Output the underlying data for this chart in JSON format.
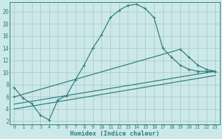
{
  "title": "",
  "xlabel": "Humidex (Indice chaleur)",
  "background_color": "#cce8e8",
  "grid_color": "#aacccc",
  "line_color": "#2d7d7d",
  "xlim": [
    -0.5,
    23.5
  ],
  "ylim": [
    1.5,
    21.5
  ],
  "xticks": [
    0,
    1,
    2,
    3,
    4,
    5,
    6,
    7,
    8,
    9,
    10,
    11,
    12,
    13,
    14,
    15,
    16,
    17,
    18,
    19,
    20,
    21,
    22,
    23
  ],
  "yticks": [
    2,
    4,
    6,
    8,
    10,
    12,
    14,
    16,
    18,
    20
  ],
  "line1_x": [
    0,
    1,
    2,
    3,
    4,
    5,
    6,
    7,
    8,
    9,
    10,
    11,
    12,
    13,
    14,
    15,
    16,
    17,
    18,
    19,
    20,
    21,
    22,
    23
  ],
  "line1_y": [
    7.5,
    5.8,
    4.9,
    3.0,
    2.2,
    5.5,
    6.2,
    8.8,
    11.2,
    14.0,
    16.2,
    19.0,
    20.2,
    21.0,
    21.2,
    20.5,
    19.0,
    14.0,
    12.5,
    11.2,
    10.5,
    10.2,
    10.2,
    10.2
  ],
  "line2_x": [
    0,
    19,
    20,
    21,
    22,
    23
  ],
  "line2_y": [
    6.0,
    13.8,
    12.5,
    11.2,
    10.5,
    10.2
  ],
  "line3_x": [
    0,
    23
  ],
  "line3_y": [
    4.8,
    10.2
  ],
  "line4_x": [
    0,
    23
  ],
  "line4_y": [
    4.0,
    9.5
  ]
}
